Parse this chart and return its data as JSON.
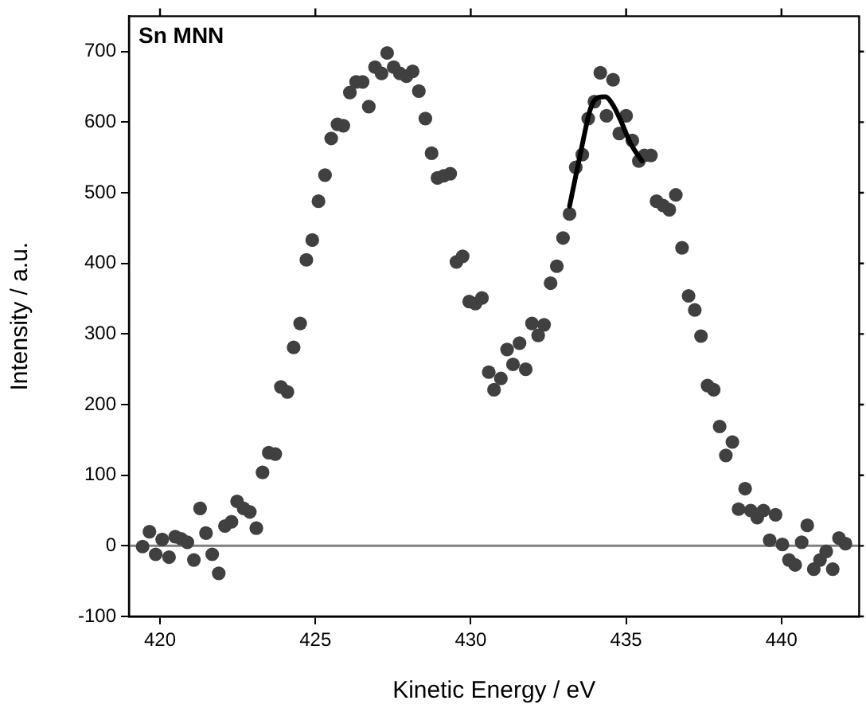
{
  "chart_data": {
    "type": "scatter",
    "xlabel": "Kinetic Energy / eV",
    "ylabel": "Intensity / a.u.",
    "annotations": [
      "Sn MNN"
    ],
    "xlim": [
      419,
      442.5
    ],
    "xticks": [
      420,
      425,
      430,
      435,
      440
    ],
    "ylim": [
      -100,
      750
    ],
    "yticks": [
      -100,
      0,
      100,
      200,
      300,
      400,
      500,
      600,
      700
    ],
    "grid": false,
    "legend": false,
    "marker": "circle",
    "ref_lines": [
      {
        "axis": "y",
        "value": 0,
        "color": "#808080"
      }
    ],
    "series": [
      {
        "color": "#404040",
        "x": [
          419.44,
          419.66,
          419.86,
          420.07,
          420.29,
          420.49,
          420.68,
          420.88,
          421.09,
          421.29,
          421.48,
          421.68,
          421.89,
          422.09,
          422.3,
          422.48,
          422.69,
          422.89,
          423.1,
          423.3,
          423.5,
          423.71,
          423.89,
          424.1,
          424.3,
          424.51,
          424.71,
          424.9,
          425.1,
          425.31,
          425.51,
          425.71,
          425.9,
          426.11,
          426.31,
          426.52,
          426.72,
          426.92,
          427.13,
          427.31,
          427.52,
          427.72,
          427.93,
          428.13,
          428.33,
          428.54,
          428.74,
          428.93,
          429.13,
          429.34,
          429.54,
          429.74,
          429.95,
          430.15,
          430.36,
          430.58,
          430.75,
          430.97,
          431.17,
          431.36,
          431.57,
          431.77,
          431.97,
          432.17,
          432.36,
          432.57,
          432.77,
          432.97,
          433.18,
          433.38,
          433.59,
          433.78,
          433.98,
          434.17,
          434.37,
          434.58,
          434.78,
          435.0,
          435.2,
          435.41,
          435.59,
          435.8,
          435.98,
          436.19,
          436.39,
          436.6,
          436.8,
          437.01,
          437.21,
          437.41,
          437.62,
          437.82,
          438.01,
          438.21,
          438.42,
          438.62,
          438.83,
          439.01,
          439.22,
          439.42,
          439.62,
          439.81,
          440.03,
          440.24,
          440.44,
          440.65,
          440.83,
          441.04,
          441.24,
          441.44,
          441.65,
          441.85,
          442.06
        ],
        "values": [
          -1,
          20,
          -12,
          9,
          -16,
          13,
          10,
          5,
          -20,
          53,
          18,
          -12,
          -39,
          28,
          34,
          63,
          53,
          48,
          25,
          104,
          132,
          130,
          225,
          218,
          281,
          315,
          405,
          433,
          488,
          525,
          577,
          597,
          595,
          642,
          657,
          657,
          622,
          678,
          669,
          698,
          678,
          669,
          665,
          672,
          644,
          605,
          556,
          521,
          524,
          527,
          402,
          410,
          346,
          343,
          351,
          246,
          221,
          237,
          278,
          257,
          287,
          250,
          315,
          298,
          313,
          372,
          396,
          436,
          470,
          536,
          554,
          605,
          629,
          670,
          609,
          660,
          584,
          609,
          574,
          545,
          553,
          553,
          488,
          482,
          476,
          497,
          422,
          354,
          334,
          297,
          227,
          221,
          169,
          128,
          147,
          52,
          81,
          50,
          40,
          50,
          8,
          44,
          2,
          -20,
          -27,
          5,
          29,
          -33,
          -20,
          -8,
          -33,
          11,
          3
        ]
      },
      {
        "type": "line",
        "color": "#000000",
        "marker": "none",
        "x": [
          433.18,
          433.55,
          433.86,
          434.1,
          434.33,
          434.58,
          434.84,
          435.13,
          435.51
        ],
        "values": [
          481,
          560,
          620,
          635,
          636,
          624,
          601,
          571,
          545
        ]
      }
    ]
  }
}
